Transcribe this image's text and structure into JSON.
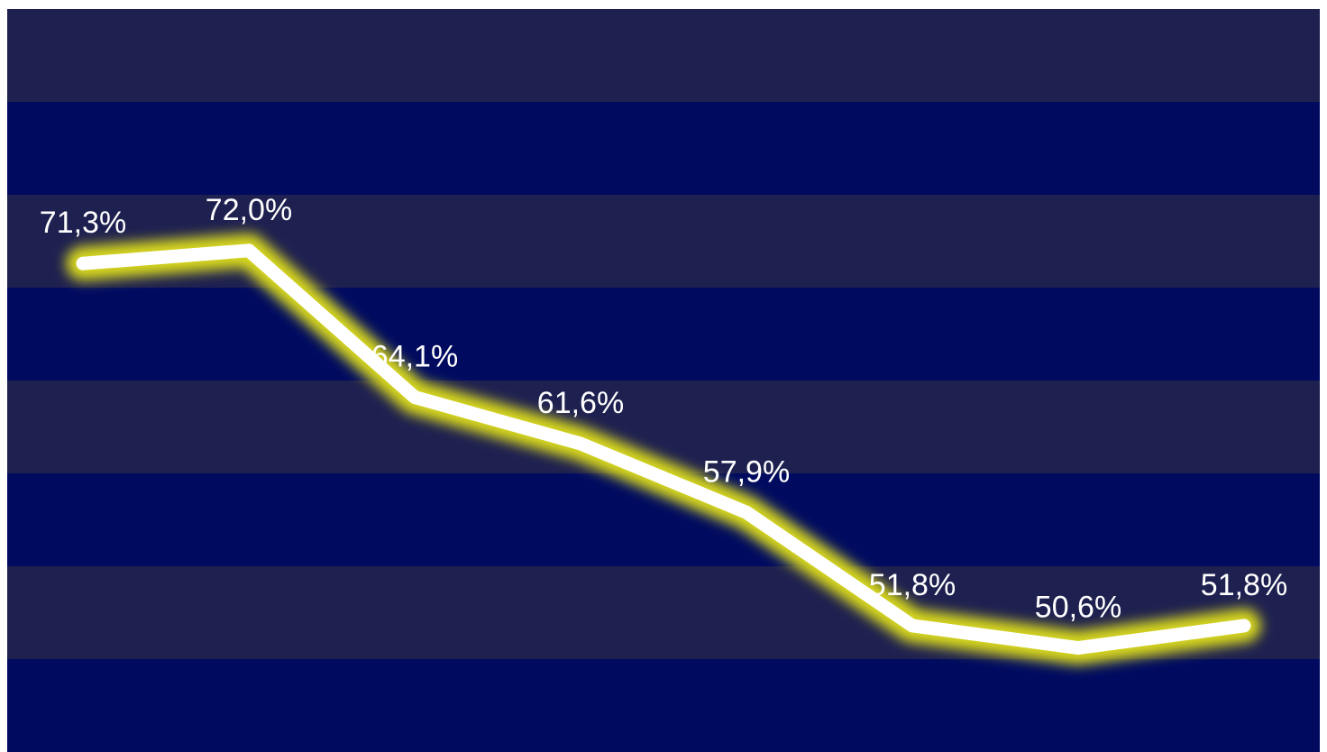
{
  "chart_data": {
    "type": "line",
    "categories": [
      "",
      "",
      "",
      "",
      "",
      "",
      "",
      ""
    ],
    "series": [
      {
        "values": [
          71.3,
          72.0,
          64.1,
          61.6,
          57.9,
          51.8,
          50.6,
          51.8
        ]
      }
    ],
    "data_labels": [
      "71,3%",
      "72,0%",
      "64,1%",
      "61,6%",
      "57,9%",
      "51,8%",
      "50,6%",
      "51,8%"
    ],
    "ylim": [
      45,
      85
    ],
    "grid": "alternating horizontal bands",
    "legend": "none",
    "colors": {
      "band_light": "#1e2050",
      "band_dark": "#000b60",
      "line": "#ffffff",
      "glow": "#d8d81a",
      "label": "#ffffff"
    }
  }
}
